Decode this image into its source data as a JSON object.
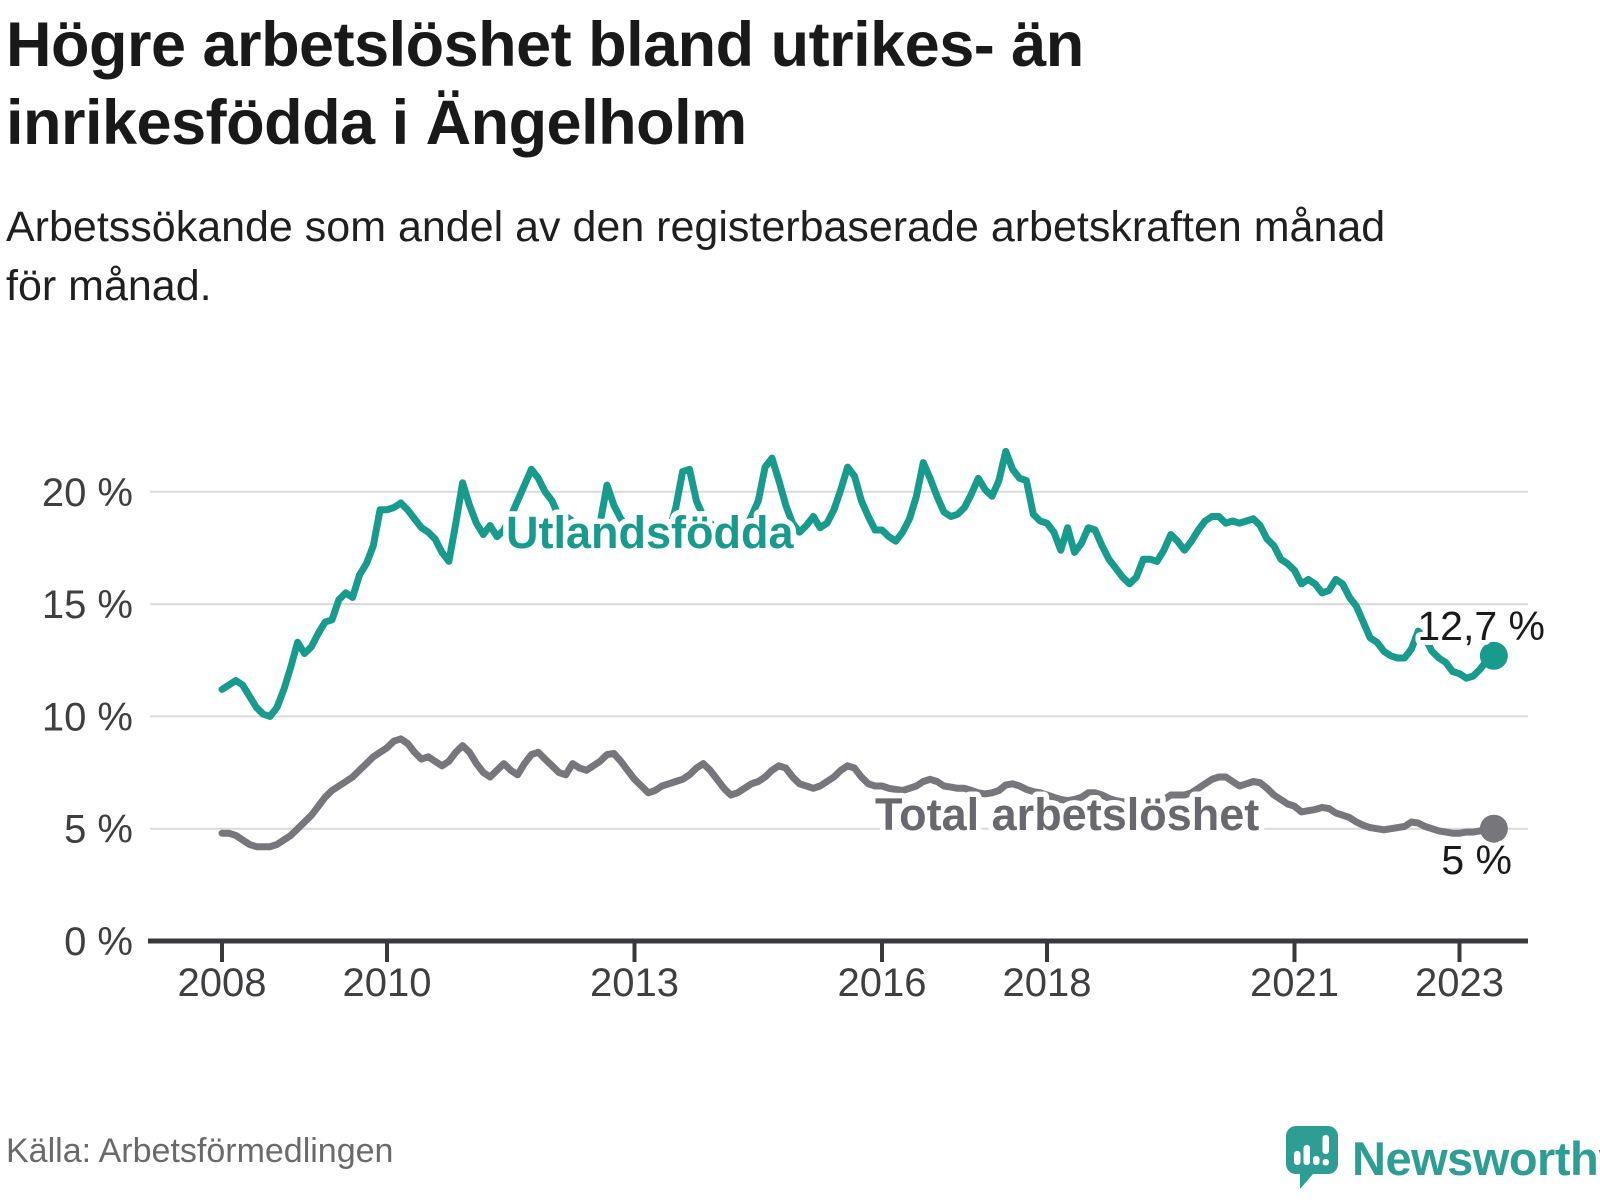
{
  "header": {
    "title_lines": [
      "Högre arbetslöshet bland utrikes- än",
      "inrikesfödda i Ängelholm"
    ],
    "subtitle_lines": [
      "Arbetssökande som andel av den registerbaserade arbetskraften månad",
      "för månad."
    ]
  },
  "footer": {
    "source": "Källa: Arbetsförmedlingen",
    "logo_text": "Newsworthy"
  },
  "colors": {
    "accent_teal": "#189a8d",
    "line_gray": "#77777b",
    "label_gray": "#69696d",
    "axis_dark": "#39393b",
    "gridline": "#dadada",
    "tick_text": "#3f3f42",
    "end_label_text": "#1a1a1a",
    "logo_teal": "#2e9d94",
    "background": "#ffffff"
  },
  "chart_data": {
    "type": "line",
    "title": "Högre arbetslöshet bland utrikes- än inrikesfödda i Ängelholm",
    "subtitle": "Arbetssökande som andel av den registerbaserade arbetskraften månad för månad.",
    "unit": "%",
    "x_start": "2008-01",
    "x_end": "2023-06",
    "x_frequency": "monthly",
    "ylim": [
      0,
      22.5
    ],
    "grid": "horizontal",
    "y_ticks": [
      0,
      5,
      10,
      15,
      20
    ],
    "y_tick_labels": [
      "0 %",
      "5 %",
      "10 %",
      "15 %",
      "20 %"
    ],
    "x_ticks": [
      {
        "year": 2008,
        "label": "2008"
      },
      {
        "year": 2010,
        "label": "2010"
      },
      {
        "year": 2013,
        "label": "2013"
      },
      {
        "year": 2016,
        "label": "2016"
      },
      {
        "year": 2018,
        "label": "2018"
      },
      {
        "year": 2021,
        "label": "2021"
      },
      {
        "year": 2023,
        "label": "2023"
      }
    ],
    "series": [
      {
        "name": "Utlandsfödda",
        "color": "#189a8d",
        "label_color": "#189a8d",
        "end_label": "12,7 %",
        "end_value": 12.7,
        "values": [
          11.2,
          11.4,
          11.6,
          11.4,
          10.9,
          10.4,
          10.1,
          10.0,
          10.4,
          11.2,
          12.2,
          13.3,
          12.8,
          13.1,
          13.7,
          14.2,
          14.3,
          15.2,
          15.5,
          15.3,
          16.3,
          16.8,
          17.6,
          19.2,
          19.2,
          19.3,
          19.5,
          19.2,
          18.8,
          18.4,
          18.2,
          17.9,
          17.3,
          16.9,
          18.6,
          20.4,
          19.4,
          18.6,
          18.1,
          18.5,
          18.0,
          18.3,
          18.9,
          19.6,
          20.3,
          21.0,
          20.6,
          20.0,
          19.6,
          18.9,
          18.9,
          18.7,
          18.0,
          17.6,
          17.9,
          18.6,
          20.3,
          19.4,
          18.8,
          18.4,
          18.2,
          18.4,
          18.0,
          17.7,
          17.6,
          18.2,
          19.3,
          20.9,
          21.0,
          19.6,
          18.9,
          18.6,
          18.4,
          18.0,
          17.8,
          17.9,
          18.3,
          18.9,
          19.6,
          21.1,
          21.5,
          20.5,
          19.4,
          18.6,
          18.2,
          18.5,
          18.9,
          18.4,
          18.6,
          19.2,
          20.1,
          21.1,
          20.7,
          19.6,
          18.9,
          18.3,
          18.3,
          18.0,
          17.8,
          18.2,
          18.8,
          19.8,
          21.3,
          20.6,
          19.8,
          19.1,
          18.9,
          19.0,
          19.3,
          19.9,
          20.6,
          20.1,
          19.8,
          20.5,
          21.8,
          21.0,
          20.6,
          20.5,
          19.0,
          18.7,
          18.6,
          18.2,
          17.4,
          18.4,
          17.3,
          17.7,
          18.4,
          18.3,
          17.6,
          17.0,
          16.6,
          16.2,
          15.9,
          16.2,
          17.0,
          17.0,
          16.9,
          17.4,
          18.1,
          17.8,
          17.4,
          17.8,
          18.3,
          18.7,
          18.9,
          18.9,
          18.6,
          18.7,
          18.6,
          18.7,
          18.8,
          18.5,
          17.9,
          17.6,
          17.0,
          16.8,
          16.5,
          15.9,
          16.1,
          15.9,
          15.5,
          15.6,
          16.1,
          15.9,
          15.3,
          14.9,
          14.2,
          13.5,
          13.3,
          12.9,
          12.7,
          12.6,
          12.6,
          13.0,
          13.8,
          13.5,
          12.9,
          12.6,
          12.4,
          12.0,
          11.9,
          11.7,
          11.8,
          12.1,
          12.5,
          12.7
        ]
      },
      {
        "name": "Total arbetslöshet",
        "color": "#77777b",
        "label_color": "#69696d",
        "end_label": "5 %",
        "end_value": 5.0,
        "values": [
          4.8,
          4.8,
          4.7,
          4.5,
          4.3,
          4.2,
          4.2,
          4.2,
          4.3,
          4.5,
          4.7,
          5.0,
          5.3,
          5.6,
          6.0,
          6.4,
          6.7,
          6.9,
          7.1,
          7.3,
          7.6,
          7.9,
          8.2,
          8.4,
          8.6,
          8.9,
          9.0,
          8.8,
          8.4,
          8.1,
          8.2,
          8.0,
          7.8,
          8.0,
          8.4,
          8.7,
          8.4,
          7.9,
          7.5,
          7.3,
          7.6,
          7.9,
          7.6,
          7.4,
          7.9,
          8.3,
          8.4,
          8.1,
          7.8,
          7.5,
          7.4,
          7.9,
          7.7,
          7.6,
          7.8,
          8.0,
          8.3,
          8.35,
          8.0,
          7.6,
          7.2,
          6.9,
          6.6,
          6.7,
          6.9,
          7.0,
          7.1,
          7.2,
          7.4,
          7.7,
          7.9,
          7.6,
          7.2,
          6.8,
          6.5,
          6.6,
          6.8,
          7.0,
          7.1,
          7.3,
          7.6,
          7.8,
          7.7,
          7.3,
          7.0,
          6.9,
          6.8,
          6.9,
          7.1,
          7.3,
          7.6,
          7.8,
          7.7,
          7.3,
          7.0,
          6.9,
          6.9,
          6.8,
          6.75,
          6.7,
          6.8,
          6.9,
          7.1,
          7.2,
          7.1,
          6.9,
          6.85,
          6.8,
          6.8,
          6.7,
          6.6,
          6.55,
          6.6,
          6.7,
          6.95,
          7.0,
          6.9,
          6.75,
          6.65,
          6.6,
          6.5,
          6.4,
          6.3,
          6.25,
          6.3,
          6.4,
          6.6,
          6.6,
          6.5,
          6.35,
          6.25,
          6.2,
          6.2,
          6.1,
          6.0,
          6.0,
          6.1,
          6.3,
          6.5,
          6.5,
          6.5,
          6.6,
          6.8,
          7.0,
          7.2,
          7.3,
          7.3,
          7.1,
          6.9,
          7.0,
          7.1,
          7.05,
          6.8,
          6.5,
          6.3,
          6.1,
          6.0,
          5.75,
          5.8,
          5.85,
          5.95,
          5.9,
          5.7,
          5.6,
          5.5,
          5.3,
          5.15,
          5.05,
          5.0,
          4.95,
          5.0,
          5.05,
          5.1,
          5.3,
          5.25,
          5.1,
          5.0,
          4.9,
          4.85,
          4.8,
          4.8,
          4.85,
          4.85,
          4.9,
          5.0,
          5.0
        ]
      }
    ],
    "legend_position": "inline-labels"
  }
}
